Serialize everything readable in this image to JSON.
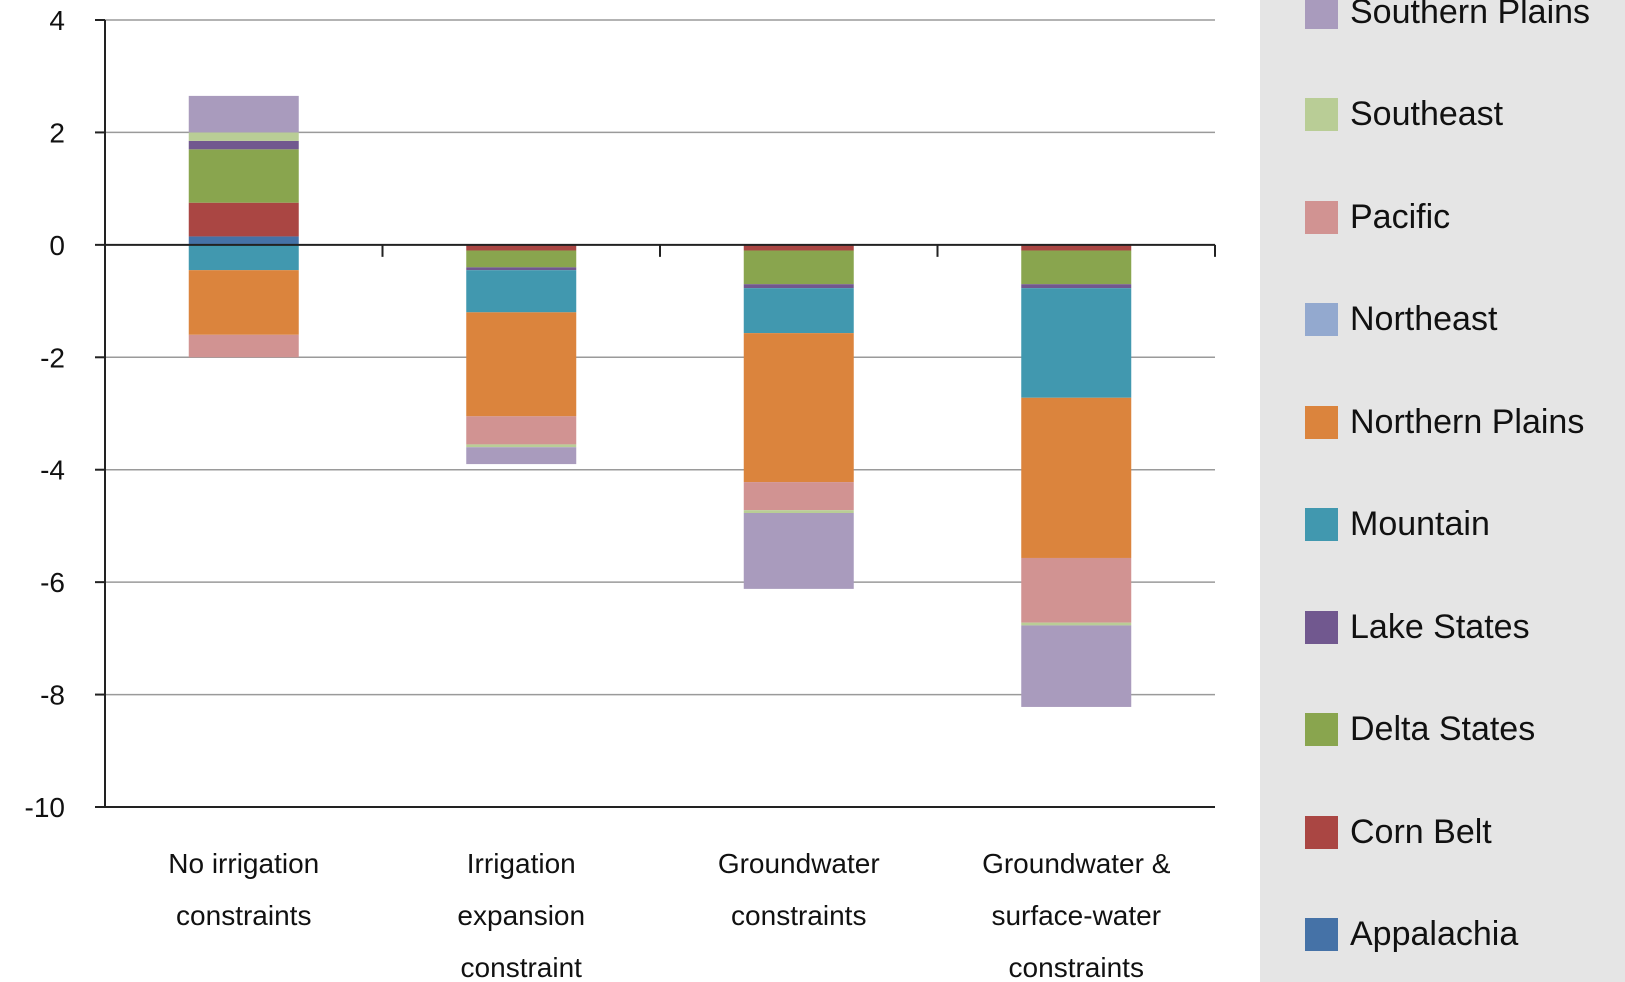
{
  "chart_data": {
    "type": "bar",
    "stacked": true,
    "title": "",
    "xlabel": "",
    "ylabel": "",
    "ylim": [
      -10,
      4
    ],
    "yticks": [
      4,
      2,
      0,
      -2,
      -4,
      -6,
      -8,
      -10
    ],
    "ytick_labels": [
      "4",
      "2",
      "0",
      "-2",
      "-4",
      "-6",
      "-8",
      "-10"
    ],
    "grid": true,
    "legend_position": "right",
    "categories": [
      [
        "No irrigation",
        "constraints"
      ],
      [
        "Irrigation",
        "expansion",
        "constraint"
      ],
      [
        "Groundwater",
        "constraints"
      ],
      [
        "Groundwater &",
        "surface-water",
        "constraints"
      ]
    ],
    "series": [
      {
        "name": "Appalachia",
        "color": "#4572a7",
        "values": [
          0.15,
          0.0,
          0.0,
          0.0
        ]
      },
      {
        "name": "Corn Belt",
        "color": "#aa4643",
        "values": [
          0.6,
          -0.1,
          -0.1,
          -0.1
        ]
      },
      {
        "name": "Delta States",
        "color": "#89a54e",
        "values": [
          0.95,
          -0.3,
          -0.6,
          -0.6
        ]
      },
      {
        "name": "Lake States",
        "color": "#71588f",
        "values": [
          0.15,
          -0.05,
          -0.07,
          -0.07
        ]
      },
      {
        "name": "Mountain",
        "color": "#4198af",
        "values": [
          -0.45,
          -0.75,
          -0.8,
          -1.95
        ]
      },
      {
        "name": "Northern Plains",
        "color": "#db843d",
        "values": [
          -1.15,
          -1.85,
          -2.65,
          -2.85
        ]
      },
      {
        "name": "Northeast",
        "color": "#93a9cf",
        "values": [
          0.0,
          0.0,
          0.0,
          0.0
        ]
      },
      {
        "name": "Pacific",
        "color": "#d19392",
        "values": [
          -0.4,
          -0.5,
          -0.5,
          -1.15
        ]
      },
      {
        "name": "Southeast",
        "color": "#b9cd96",
        "values": [
          0.15,
          -0.05,
          -0.05,
          -0.05
        ]
      },
      {
        "name": "Southern Plains",
        "color": "#a99bbd",
        "values": [
          0.65,
          -0.3,
          -1.35,
          -1.45
        ]
      }
    ]
  }
}
